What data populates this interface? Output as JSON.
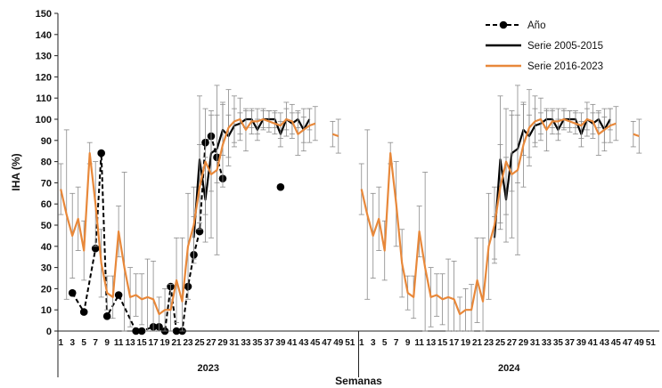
{
  "chart_data": {
    "type": "line",
    "xlabel": "Semanas",
    "ylabel": "IHA (%)",
    "ylim": [
      0,
      150
    ],
    "yticks": [
      0,
      10,
      20,
      30,
      40,
      50,
      60,
      70,
      80,
      90,
      100,
      110,
      120,
      130,
      140,
      150
    ],
    "xtick_labels": [
      "1",
      "3",
      "5",
      "7",
      "9",
      "11",
      "13",
      "15",
      "17",
      "19",
      "21",
      "23",
      "25",
      "27",
      "29",
      "31",
      "33",
      "35",
      "37",
      "39",
      "41",
      "43",
      "45",
      "47",
      "49",
      "51"
    ],
    "panels": [
      "2023",
      "2024"
    ],
    "legend_position": "top-right",
    "grid": false,
    "series": [
      {
        "name": "Año",
        "color": "#000000",
        "style": "dashed-with-markers",
        "panel": "2023",
        "x": [
          3,
          5,
          7,
          8,
          9,
          11,
          14,
          15,
          17,
          18,
          19,
          20,
          21,
          22,
          23,
          24,
          25,
          26,
          27,
          28,
          29,
          30,
          39
        ],
        "y": [
          18,
          9,
          39,
          84,
          7,
          17,
          0,
          0,
          2,
          2,
          0,
          21,
          0,
          0,
          21,
          36,
          47,
          89,
          92,
          82,
          72,
          null,
          68
        ]
      },
      {
        "name": "Serie 2005-2015",
        "color": "#000000",
        "style": "solid",
        "panels": [
          "2023",
          "2024"
        ],
        "x": [
          24,
          25,
          26,
          27,
          28,
          29,
          30,
          31,
          32,
          33,
          34,
          35,
          36,
          37,
          38,
          39,
          40,
          41,
          42,
          43,
          44
        ],
        "y": [
          44,
          81,
          62,
          84,
          86,
          95,
          92,
          97,
          98,
          100,
          100,
          95,
          100,
          100,
          100,
          93,
          100,
          98,
          100,
          95,
          100
        ],
        "error": [
          10,
          30,
          20,
          18,
          16,
          12,
          10,
          8,
          5,
          4,
          4,
          5,
          4,
          4,
          4,
          6,
          5,
          5,
          4,
          6,
          5
        ]
      },
      {
        "name": "Serie 2016-2023",
        "color": "#E8883A",
        "style": "solid",
        "panels": [
          "2023",
          "2024"
        ],
        "x": [
          1,
          2,
          3,
          4,
          5,
          6,
          7,
          8,
          9,
          10,
          11,
          12,
          13,
          14,
          15,
          16,
          17,
          18,
          19,
          20,
          21,
          22,
          23,
          24,
          25,
          26,
          27,
          28,
          29,
          30,
          31,
          32,
          33,
          34,
          35,
          36,
          37,
          38,
          39,
          40,
          41,
          42,
          43,
          44,
          45,
          46,
          47,
          48,
          49,
          50,
          51,
          52
        ],
        "y": [
          67,
          55,
          45,
          53,
          38,
          84,
          60,
          32,
          18,
          16,
          47,
          30,
          16,
          17,
          15,
          16,
          15,
          8,
          10,
          10,
          24,
          14,
          40,
          50,
          68,
          80,
          74,
          76,
          88,
          96,
          99,
          100,
          95,
          99,
          99,
          100,
          99,
          98,
          97,
          100,
          99,
          93,
          95,
          97,
          98,
          null,
          null,
          93,
          92,
          null,
          null,
          null
        ],
        "error": [
          12,
          40,
          20,
          15,
          14,
          5,
          20,
          16,
          8,
          10,
          12,
          45,
          14,
          10,
          12,
          18,
          18,
          8,
          10,
          12,
          20,
          30,
          25,
          18,
          20,
          25,
          30,
          40,
          20,
          18,
          12,
          10,
          10,
          6,
          6,
          5,
          5,
          5,
          6,
          8,
          8,
          10,
          10,
          8,
          8,
          null,
          null,
          6,
          8,
          null,
          null,
          null
        ]
      }
    ]
  }
}
